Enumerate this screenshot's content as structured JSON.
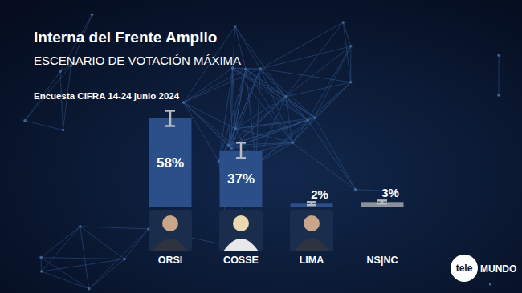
{
  "chart_data": {
    "type": "bar",
    "title": "Interna del Frente Amplio",
    "subtitle": "ESCENARIO DE VOTACIÓN MÁXIMA",
    "source": "Encuesta CIFRA 14-24 junio 2024",
    "logo": [
      "tele",
      "MUNDO"
    ],
    "categories": [
      "ORSI",
      "COSSE",
      "LIMA",
      "NS|NC"
    ],
    "values": [
      58,
      37,
      2,
      3
    ],
    "value_labels": [
      "58%",
      "37%",
      "2%",
      "3%"
    ],
    "errors": [
      5,
      5,
      1,
      1
    ],
    "colors": [
      "#2b4f88",
      "#2b4f88",
      "#2b4f88",
      "#8c9099"
    ],
    "ylim": [
      0,
      68
    ],
    "data_labels": true,
    "tick_labels": "x",
    "grid": false
  }
}
